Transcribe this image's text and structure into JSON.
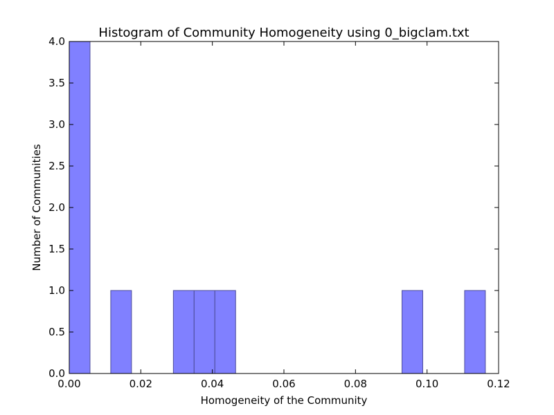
{
  "chart_data": {
    "type": "bar",
    "title": "Histogram of Community Homogeneity using 0_bigclam.txt",
    "xlabel": "Homogeneity of the Community",
    "ylabel": "Number of Communities",
    "xlim": [
      0.0,
      0.12
    ],
    "ylim": [
      0.0,
      4.0
    ],
    "xticks": [
      "0.00",
      "0.02",
      "0.04",
      "0.06",
      "0.08",
      "0.10",
      "0.12"
    ],
    "yticks": [
      "0.0",
      "0.5",
      "1.0",
      "1.5",
      "2.0",
      "2.5",
      "3.0",
      "3.5",
      "4.0"
    ],
    "bins": [
      {
        "x0": 0.0,
        "x1": 0.0058,
        "count": 4
      },
      {
        "x0": 0.0116,
        "x1": 0.0174,
        "count": 1
      },
      {
        "x0": 0.0291,
        "x1": 0.0349,
        "count": 1
      },
      {
        "x0": 0.0349,
        "x1": 0.0407,
        "count": 1
      },
      {
        "x0": 0.0407,
        "x1": 0.0465,
        "count": 1
      },
      {
        "x0": 0.093,
        "x1": 0.0988,
        "count": 1
      },
      {
        "x0": 0.1105,
        "x1": 0.1163,
        "count": 1
      }
    ],
    "bar_color": "#8080ff",
    "bar_edge_color": "#4d4d99",
    "grid": false
  }
}
